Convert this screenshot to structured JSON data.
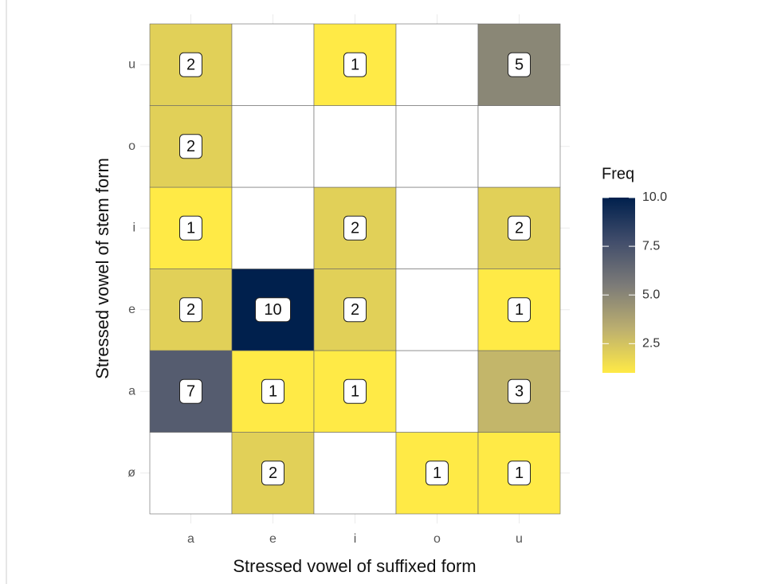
{
  "chart_data": {
    "type": "heatmap",
    "x_label": "Stressed vowel of suffixed form",
    "y_label": "Stressed vowel of stem form",
    "x_categories": [
      "a",
      "e",
      "i",
      "o",
      "u"
    ],
    "y_categories": [
      "ø",
      "a",
      "e",
      "i",
      "o",
      "u"
    ],
    "values": [
      [
        null,
        2,
        null,
        1,
        1
      ],
      [
        7,
        1,
        1,
        null,
        3
      ],
      [
        2,
        10,
        2,
        null,
        1
      ],
      [
        1,
        null,
        2,
        null,
        2
      ],
      [
        2,
        null,
        null,
        null,
        null
      ],
      [
        2,
        null,
        1,
        null,
        5
      ]
    ],
    "legend_title": "Freq",
    "colorbar_lim": [
      1,
      10
    ],
    "colorbar_ticks": [
      2.5,
      {
        "value": 5,
        "label": "5.0"
      },
      7.5,
      {
        "value": 10,
        "label": "10.0"
      }
    ],
    "colors": [
      "#FFEA46",
      "#BCAF6F",
      "#7C7B78",
      "#414D6B",
      "#00204D"
    ],
    "empty_color": "#ffffff",
    "legend_position": "right"
  }
}
